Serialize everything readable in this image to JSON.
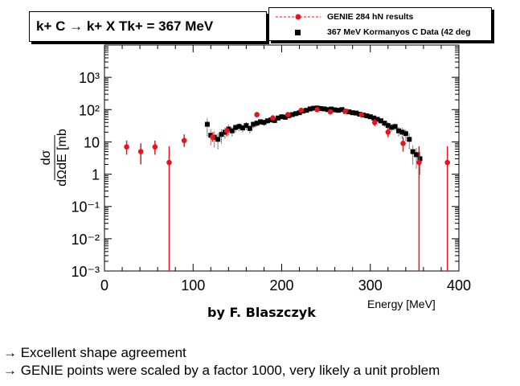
{
  "title": "k+ C → k+ X Tk+ = 367 MeV",
  "author": "by F. Blaszczyk",
  "legend": {
    "genie": "GENIE 284 hN results",
    "data": "367 MeV Kormanyos C Data (42 deg"
  },
  "notes": [
    "→ Excellent shape agreement",
    "→ GENIE points were scaled by a factor 1000, very likely a unit problem"
  ],
  "colors": {
    "genie": "#e8141b",
    "data": "#000000"
  },
  "chart_data": {
    "type": "scatter",
    "title": "k+ C → k+ X Tk+ = 367 MeV",
    "xlabel": "Energy [MeV]",
    "ylabel": "dσ / dΩdE [mb / sr·Mev]",
    "xlim": [
      0,
      400
    ],
    "ylim": [
      0.001,
      10000
    ],
    "yscale": "log",
    "x_ticks": [
      "0",
      "100",
      "200",
      "300",
      "400"
    ],
    "y_ticks": [
      "10⁻³",
      "10⁻²",
      "10⁻¹",
      "1",
      "10",
      "10²",
      "10³"
    ],
    "grid": false,
    "legend_position": "top-right",
    "series": [
      {
        "name": "GENIE 284 hN results",
        "x": [
          25,
          41,
          57,
          73,
          90,
          122,
          138,
          172,
          190,
          207,
          222,
          240,
          255,
          272,
          290,
          305,
          320,
          337,
          355,
          387
        ],
        "y": [
          7,
          5,
          7,
          2.3,
          11,
          14,
          22,
          70,
          55,
          70,
          95,
          100,
          85,
          90,
          70,
          40,
          20,
          9,
          2.3,
          2.3
        ],
        "y_err_low": [
          3,
          3,
          3,
          2.299,
          4,
          4,
          7,
          13,
          10,
          11,
          15,
          16,
          14,
          14,
          11,
          9,
          6,
          4,
          2.299,
          2.299
        ],
        "y_err_high": [
          4,
          4,
          4,
          5,
          6,
          6,
          8,
          14,
          12,
          13,
          17,
          18,
          16,
          16,
          13,
          11,
          8,
          5,
          5,
          5
        ]
      },
      {
        "name": "367 MeV Kormanyos C Data (42 deg",
        "x": [
          116,
          120,
          124,
          128,
          132,
          136,
          140,
          144,
          148,
          152,
          156,
          160,
          164,
          168,
          172,
          176,
          180,
          184,
          188,
          192,
          196,
          200,
          204,
          208,
          212,
          216,
          220,
          224,
          228,
          232,
          236,
          240,
          244,
          248,
          252,
          256,
          260,
          264,
          268,
          272,
          276,
          280,
          284,
          288,
          292,
          296,
          300,
          304,
          308,
          312,
          316,
          320,
          324,
          328,
          332,
          336,
          340,
          344,
          348,
          352,
          356
        ],
        "y": [
          35,
          16,
          14,
          12,
          17,
          20,
          25,
          22,
          28,
          30,
          27,
          32,
          26,
          35,
          38,
          42,
          40,
          45,
          48,
          46,
          55,
          60,
          58,
          65,
          70,
          75,
          80,
          90,
          95,
          105,
          110,
          112,
          108,
          105,
          100,
          104,
          98,
          95,
          100,
          88,
          85,
          80,
          78,
          72,
          68,
          64,
          60,
          55,
          50,
          45,
          38,
          32,
          28,
          30,
          22,
          20,
          18,
          12,
          5,
          4,
          3
        ],
        "y_err_low": [
          20,
          8,
          7,
          6,
          8,
          7,
          9,
          7,
          8,
          8,
          7,
          8,
          7,
          8,
          8,
          8,
          8,
          8,
          8,
          8,
          9,
          9,
          9,
          9,
          10,
          10,
          10,
          11,
          11,
          12,
          12,
          12,
          12,
          12,
          11,
          11,
          11,
          11,
          11,
          10,
          10,
          10,
          10,
          9,
          9,
          9,
          9,
          8,
          8,
          8,
          8,
          8,
          7,
          7,
          7,
          7,
          7,
          6,
          3,
          2.5,
          2
        ],
        "y_err_high": [
          20,
          8,
          7,
          6,
          8,
          7,
          9,
          7,
          8,
          8,
          7,
          8,
          7,
          8,
          8,
          8,
          8,
          8,
          8,
          8,
          9,
          9,
          9,
          9,
          10,
          10,
          10,
          11,
          11,
          12,
          12,
          12,
          12,
          12,
          11,
          11,
          11,
          11,
          11,
          10,
          10,
          10,
          10,
          9,
          9,
          9,
          9,
          8,
          8,
          8,
          8,
          8,
          7,
          7,
          7,
          7,
          7,
          6,
          3,
          2.5,
          2
        ]
      }
    ]
  }
}
